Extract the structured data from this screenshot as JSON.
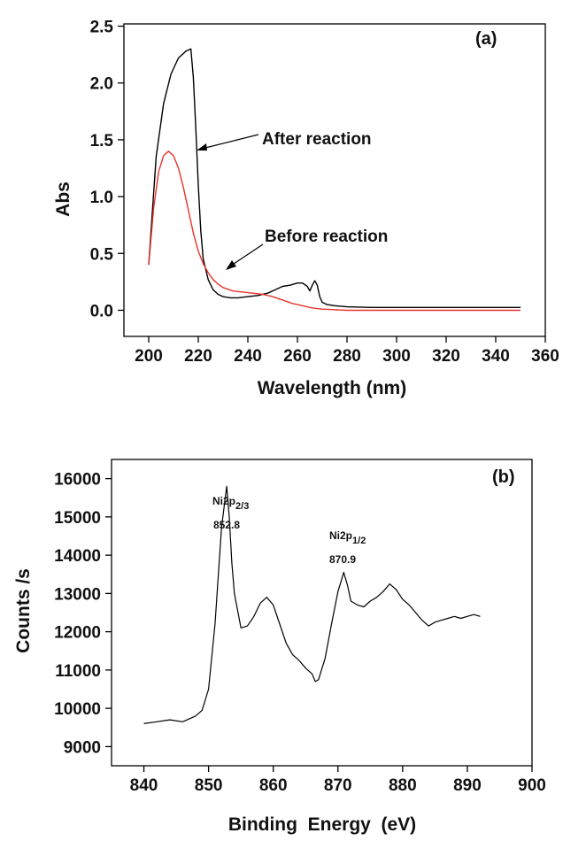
{
  "chart_data": [
    {
      "type": "line",
      "panel_label": "(a)",
      "xlabel": "Wavelength (nm)",
      "ylabel": "Abs",
      "xlim": [
        190,
        360
      ],
      "ylim": [
        -0.23,
        2.52
      ],
      "x_ticks": [
        200,
        220,
        240,
        260,
        280,
        300,
        320,
        340,
        360
      ],
      "y_ticks": [
        "0.0",
        "0.5",
        "1.0",
        "1.5",
        "2.0",
        "2.5"
      ],
      "grid": false,
      "series": [
        {
          "name": "After reaction",
          "color": "#000000",
          "x": [
            200,
            203,
            206,
            209,
            212,
            215,
            217,
            218,
            219,
            220,
            221,
            222,
            224,
            226,
            228,
            230,
            233,
            236,
            240,
            244,
            248,
            251,
            254,
            257,
            260,
            262,
            264,
            265,
            266,
            267,
            268,
            269,
            270,
            272,
            275,
            280,
            290,
            300,
            320,
            350
          ],
          "y": [
            0.4,
            1.35,
            1.82,
            2.08,
            2.22,
            2.28,
            2.3,
            2.05,
            1.6,
            1.1,
            0.7,
            0.45,
            0.27,
            0.18,
            0.14,
            0.12,
            0.11,
            0.11,
            0.12,
            0.13,
            0.15,
            0.18,
            0.21,
            0.22,
            0.24,
            0.24,
            0.21,
            0.17,
            0.22,
            0.26,
            0.22,
            0.12,
            0.07,
            0.05,
            0.04,
            0.03,
            0.025,
            0.025,
            0.025,
            0.025
          ]
        },
        {
          "name": "Before reaction",
          "color": "#e8332a",
          "x": [
            200,
            202,
            204,
            206,
            208,
            210,
            212,
            214,
            216,
            218,
            220,
            222,
            224,
            226,
            228,
            230,
            234,
            238,
            242,
            246,
            250,
            254,
            258,
            262,
            266,
            270,
            275,
            280,
            290,
            300,
            320,
            350
          ],
          "y": [
            0.4,
            0.9,
            1.22,
            1.36,
            1.4,
            1.36,
            1.25,
            1.08,
            0.88,
            0.68,
            0.52,
            0.41,
            0.33,
            0.27,
            0.23,
            0.2,
            0.17,
            0.16,
            0.15,
            0.14,
            0.12,
            0.09,
            0.06,
            0.04,
            0.02,
            0.01,
            0.005,
            0.0,
            0.0,
            0.0,
            0.0,
            0.0
          ]
        }
      ],
      "annotations": [
        {
          "text": "After reaction",
          "x": 256,
          "y": 1.49,
          "arrow_from": [
            252,
            1.55
          ],
          "arrow_to": [
            219,
            1.4
          ]
        },
        {
          "text": "Before reaction",
          "x": 259,
          "y": 0.62,
          "arrow_from": [
            258,
            0.6
          ],
          "arrow_to": [
            228,
            0.34
          ]
        }
      ]
    },
    {
      "type": "line",
      "panel_label": "(b)",
      "xlabel": "Binding  Energy  (eV)",
      "ylabel": "Counts /s",
      "xlim": [
        835,
        900
      ],
      "ylim": [
        8500,
        16500
      ],
      "x_ticks": [
        840,
        850,
        860,
        870,
        880,
        890,
        900
      ],
      "y_ticks": [
        9000,
        10000,
        11000,
        12000,
        13000,
        14000,
        15000,
        16000
      ],
      "grid": false,
      "series": [
        {
          "name": "",
          "color": "#000000",
          "x": [
            840,
            842,
            844,
            846,
            848,
            849,
            850,
            851,
            852,
            852.5,
            852.8,
            853.2,
            853.6,
            854,
            855,
            856,
            857,
            858,
            859,
            860,
            861,
            862,
            863,
            864,
            865,
            866,
            866.5,
            867,
            868,
            869,
            870,
            870.9,
            871.5,
            872,
            873,
            874,
            875,
            876,
            877,
            878,
            879,
            880,
            881,
            882,
            883,
            884,
            885,
            886,
            887,
            888,
            889,
            890,
            891,
            892
          ],
          "y": [
            9600,
            9650,
            9700,
            9650,
            9800,
            9950,
            10500,
            12200,
            14700,
            15400,
            15800,
            15000,
            13800,
            13000,
            12100,
            12150,
            12400,
            12750,
            12900,
            12700,
            12200,
            11700,
            11400,
            11250,
            11050,
            10900,
            10700,
            10750,
            11300,
            12200,
            13050,
            13550,
            13200,
            12800,
            12700,
            12650,
            12800,
            12900,
            13050,
            13250,
            13100,
            12850,
            12700,
            12500,
            12300,
            12150,
            12250,
            12300,
            12350,
            12400,
            12350,
            12400,
            12450,
            12400
          ]
        }
      ],
      "annotations": [
        {
          "text": "Ni2p",
          "sub": "2/3",
          "value": "852.8",
          "x": 852.8
        },
        {
          "text": "Ni2p",
          "sub": "1/2",
          "value": "870.9",
          "x": 870.9
        }
      ]
    }
  ]
}
